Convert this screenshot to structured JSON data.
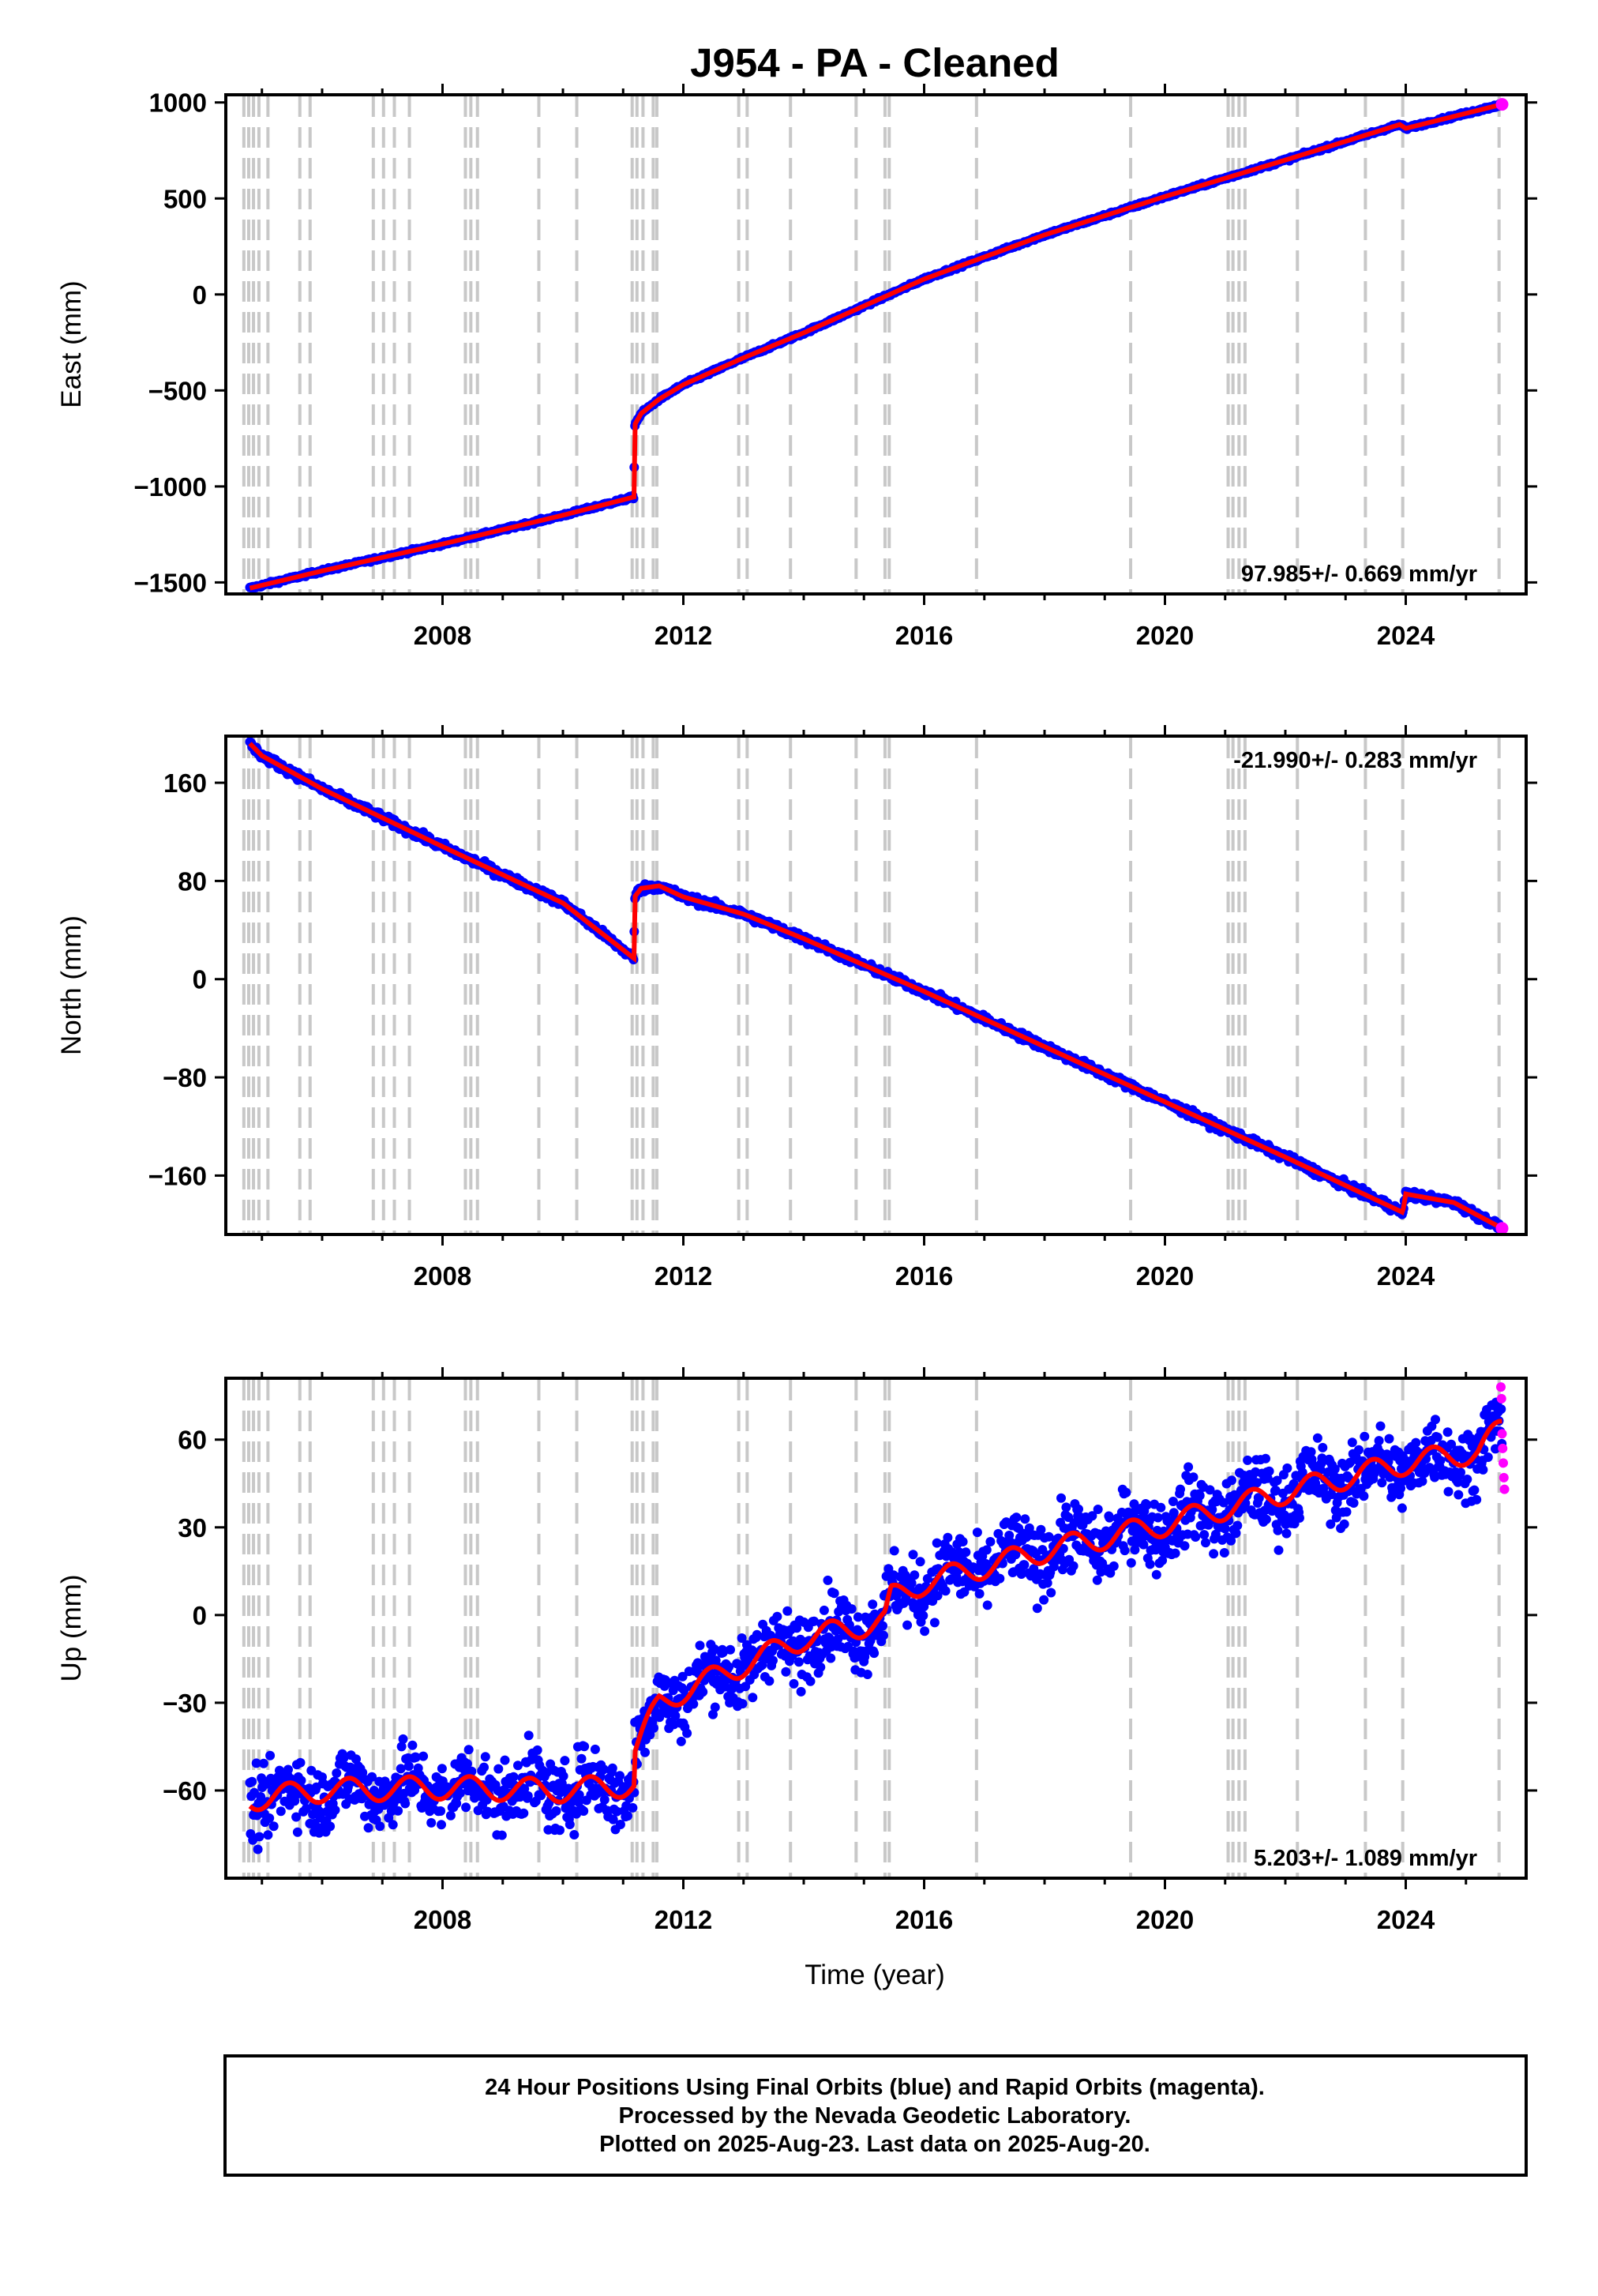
{
  "chart_data": {
    "title": "J954  - PA - Cleaned",
    "xlabel": "Time (year)",
    "xlim": [
      2004.4,
      2026.0
    ],
    "xticks": [
      2008,
      2012,
      2016,
      2020,
      2024
    ],
    "type": "scatter",
    "grid": false,
    "event_lines": [
      2004.7,
      2004.78,
      2004.86,
      2004.95,
      2005.1,
      2005.63,
      2005.8,
      2006.85,
      2007.02,
      2007.2,
      2007.45,
      2008.38,
      2008.47,
      2008.58,
      2009.6,
      2010.23,
      2011.15,
      2011.23,
      2011.33,
      2011.5,
      2011.56,
      2012.92,
      2013.06,
      2013.78,
      2014.87,
      2015.35,
      2015.42,
      2016.87,
      2019.43,
      2021.05,
      2021.13,
      2021.23,
      2021.33,
      2022.2,
      2023.33,
      2023.95,
      2025.55
    ],
    "panels": [
      {
        "component": "East",
        "ylabel": "East (mm)",
        "ylim": [
          -1560,
          1040
        ],
        "yticks": [
          1000,
          500,
          0,
          -500,
          -1000,
          -1500
        ],
        "ytick_labels": [
          "1000",
          "500",
          "0",
          "−500",
          "−1000",
          "−1500"
        ],
        "rate_label": "97.985+/- 0.669 mm/yr",
        "rate_position": "bottom-right",
        "noise_mm": 4,
        "model": {
          "x": [
            2004.8,
            2006.0,
            2008.0,
            2010.0,
            2011.18,
            2011.19,
            2011.3,
            2011.6,
            2012.0,
            2013.0,
            2014.0,
            2016.0,
            2018.0,
            2020.0,
            2022.0,
            2023.9,
            2024.0,
            2025.6
          ],
          "y": [
            -1530,
            -1440,
            -1300,
            -1150,
            -1055,
            -680,
            -620,
            -545,
            -470,
            -330,
            -200,
            80,
            310,
            510,
            700,
            885,
            865,
            990
          ]
        }
      },
      {
        "component": "North",
        "ylabel": "North (mm)",
        "ylim": [
          -208,
          198
        ],
        "yticks": [
          160,
          80,
          0,
          -80,
          -160
        ],
        "ytick_labels": [
          "160",
          "80",
          "0",
          "−80",
          "−160"
        ],
        "rate_label": "-21.990+/- 0.283 mm/yr",
        "rate_position": "top-right",
        "noise_mm": 1.6,
        "model": {
          "x": [
            2004.8,
            2005.0,
            2006.0,
            2008.0,
            2010.0,
            2011.18,
            2011.19,
            2011.3,
            2011.6,
            2012.0,
            2013.0,
            2014.0,
            2016.0,
            2018.0,
            2020.0,
            2022.0,
            2023.95,
            2024.0,
            2024.8,
            2025.6
          ],
          "y": [
            192,
            182,
            155,
            108,
            62,
            17,
            67,
            74,
            76,
            67,
            53,
            33,
            -10,
            -55,
            -100,
            -145,
            -190,
            -175,
            -182,
            -203
          ]
        }
      },
      {
        "component": "Up",
        "ylabel": "Up (mm)",
        "ylim": [
          -90,
          81
        ],
        "yticks": [
          60,
          30,
          0,
          -30,
          -60
        ],
        "ytick_labels": [
          "60",
          "30",
          "0",
          "−30",
          "−60"
        ],
        "rate_label": "5.203+/- 1.089 mm/yr",
        "rate_position": "bottom-right",
        "noise_mm": 6,
        "seasonal_amplitude": 4,
        "model": {
          "x": [
            2004.8,
            2006.0,
            2008.0,
            2010.0,
            2011.18,
            2011.19,
            2011.6,
            2012.0,
            2013.0,
            2014.0,
            2015.35,
            2015.45,
            2016.0,
            2018.0,
            2020.0,
            2022.0,
            2024.0,
            2025.2,
            2025.6
          ],
          "y": [
            -63,
            -60,
            -59,
            -60,
            -58,
            -47,
            -30,
            -26,
            -17,
            -8,
            -2,
            6,
            11,
            22,
            31,
            42,
            52,
            56,
            64
          ]
        },
        "rapid_orbits": {
          "x": [
            2025.58,
            2025.59,
            2025.6,
            2025.61,
            2025.62,
            2025.63,
            2025.64
          ],
          "y": [
            78,
            74,
            62,
            57,
            52,
            47,
            43
          ]
        }
      }
    ],
    "series": [
      {
        "name": "Final Orbits",
        "color": "#0000ff"
      },
      {
        "name": "Rapid Orbits",
        "color": "#ff00ff"
      },
      {
        "name": "Model",
        "color": "#ff0000"
      }
    ]
  },
  "footer": {
    "line1": "24 Hour Positions Using Final Orbits (blue) and Rapid Orbits (magenta).",
    "line2": "Processed by the Nevada Geodetic Laboratory.",
    "line3": "Plotted on 2025-Aug-23. Last data on 2025-Aug-20."
  }
}
